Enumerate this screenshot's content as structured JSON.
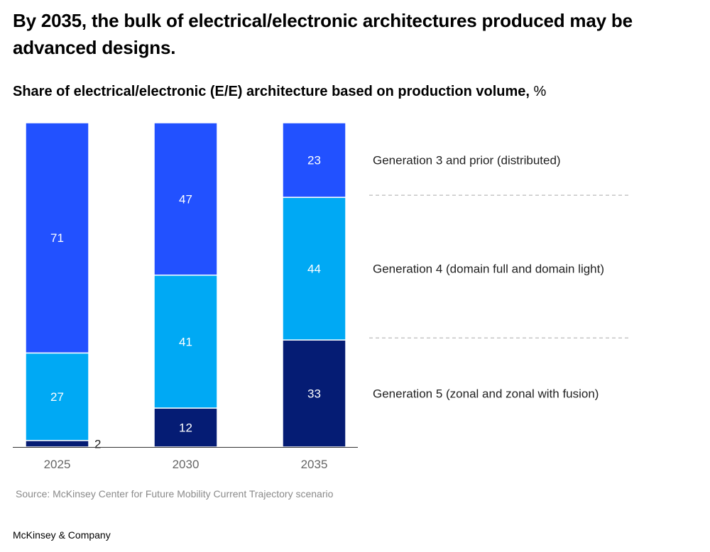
{
  "headline": "By 2035, the bulk of electrical/electronic architectures produced may be advanced designs.",
  "subtitle": "Share of electrical/electronic (E/E) architecture based on production volume,",
  "subtitle_unit": "%",
  "source": "Source: McKinsey Center for Future Mobility Current Trajectory scenario",
  "brand": "McKinsey & Company",
  "colors": {
    "gen3": "#2251ff",
    "gen4": "#00a9f4",
    "gen5": "#051c74",
    "bar_label": "#ffffff",
    "axis_label": "#666666",
    "divider": "#aaaaaa"
  },
  "chart_data": {
    "type": "bar",
    "stacked": true,
    "title": "Share of electrical/electronic (E/E) architecture based on production volume, %",
    "xlabel": "",
    "ylabel": "%",
    "ylim": [
      0,
      100
    ],
    "grid": false,
    "legend_position": "right",
    "categories": [
      "2025",
      "2030",
      "2035"
    ],
    "series": [
      {
        "name": "Generation 5 (zonal and zonal with fusion)",
        "color_key": "gen5",
        "values": [
          2,
          12,
          33
        ]
      },
      {
        "name": "Generation 4 (domain full and domain light)",
        "color_key": "gen4",
        "values": [
          27,
          41,
          44
        ]
      },
      {
        "name": "Generation 3 and prior (distributed)",
        "color_key": "gen3",
        "values": [
          71,
          47,
          23
        ]
      }
    ]
  }
}
